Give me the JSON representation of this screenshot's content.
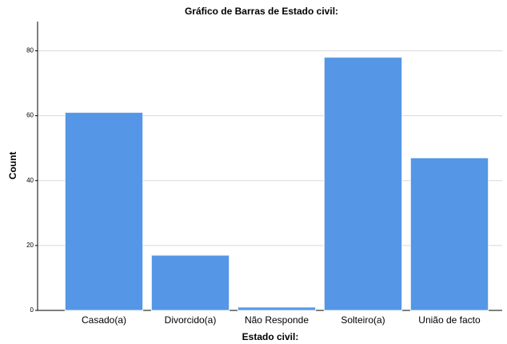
{
  "chart_data": {
    "type": "bar",
    "title": "Gráfico de Barras de Estado civil:",
    "x_label": "Estado civil:",
    "y_label": "Count",
    "categories": [
      "Casado(a)",
      "Divorcido(a)",
      "Não Responde",
      "Solteiro(a)",
      "União de facto"
    ],
    "values": [
      61,
      17,
      1,
      78,
      47
    ],
    "color": "#5596e6",
    "ylim": [
      0,
      89
    ],
    "yticks": [
      0,
      20,
      40,
      60,
      80
    ],
    "grid": true
  }
}
